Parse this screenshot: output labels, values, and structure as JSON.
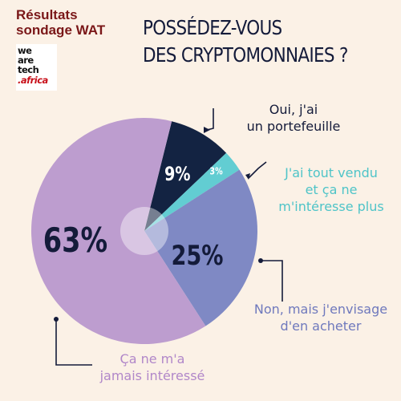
{
  "header": {
    "survey_line1": "Résultats",
    "survey_line2": "sondage WAT",
    "logo_lines": [
      "we",
      "are",
      "tech",
      ".africa"
    ],
    "title_line1": "POSSÉDEZ-VOUS",
    "title_line2": "DES CRYPTOMONNAIES ?"
  },
  "colors": {
    "background": "#fbf1e6",
    "slice_portefeuille": "#132342",
    "slice_vendu": "#62cdd2",
    "slice_envisage": "#7f89c4",
    "slice_jamais": "#bd9dcf",
    "label_vendu": "#4ec4c8",
    "label_envisage": "#6f79bd",
    "label_jamais": "#b187c9"
  },
  "chart_data": {
    "type": "pie",
    "title": "POSSÉDEZ-VOUS DES CRYPTOMONNAIES ?",
    "start_angle_deg": 14,
    "slices": [
      {
        "label_lines": [
          "Oui, j'ai",
          "un portefeuille"
        ],
        "value": 9,
        "value_label": "9%",
        "color": "#132342",
        "text_color": "#141b3a"
      },
      {
        "label_lines": [
          "J'ai tout vendu",
          "et ça ne",
          "m'intéresse plus"
        ],
        "value": 3,
        "value_label": "3%",
        "color": "#62cdd2",
        "text_color": "#4ec4c8"
      },
      {
        "label_lines": [
          "Non, mais j'envisage",
          "d'en acheter"
        ],
        "value": 25,
        "value_label": "25%",
        "color": "#7f89c4",
        "text_color": "#6f79bd"
      },
      {
        "label_lines": [
          "Ça ne m'a",
          "jamais intéressé"
        ],
        "value": 63,
        "value_label": "63%",
        "color": "#bd9dcf",
        "text_color": "#b187c9"
      }
    ]
  }
}
